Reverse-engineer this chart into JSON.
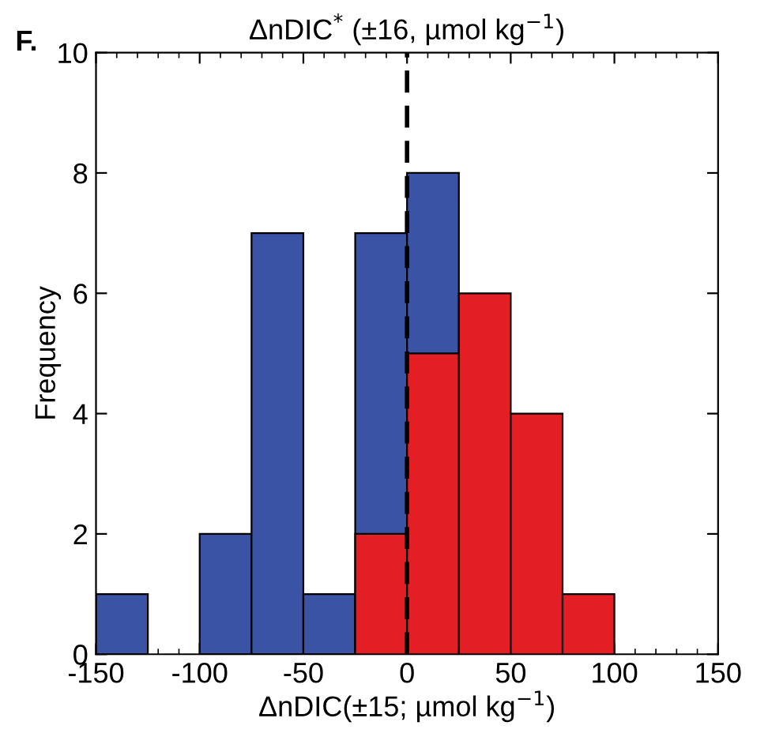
{
  "chart_data": {
    "type": "histogram",
    "title": "ΔnDIC$^{*}$ (±16, µmol kg$^{−1}$)",
    "xlabel": "ΔnDIC(±15; µmol kg$^{−1}$)",
    "ylabel": "Frequency",
    "annotations": [
      "F."
    ],
    "bins": [
      -150,
      -125,
      -100,
      -75,
      -50,
      -25,
      0,
      25,
      50,
      75,
      100
    ],
    "series": [
      {
        "color": "#3a53a4",
        "values": [
          1,
          0,
          2,
          7,
          1,
          7,
          8,
          null,
          null,
          null
        ]
      },
      {
        "color": "#e31e25",
        "values": [
          0,
          0,
          0,
          0,
          0,
          2,
          5,
          6,
          4,
          1
        ]
      }
    ],
    "xlim": [
      -150,
      150
    ],
    "xticks": [
      -150,
      -100,
      -50,
      0,
      50,
      100,
      150
    ],
    "ylim": [
      0,
      10
    ],
    "yticks": [
      0,
      2,
      4,
      6,
      8,
      10
    ],
    "ref_lines": [
      {
        "axis": "x",
        "value": 0,
        "color": "#000000",
        "line_style": "dashed"
      }
    ],
    "grid": false,
    "legend": false
  }
}
